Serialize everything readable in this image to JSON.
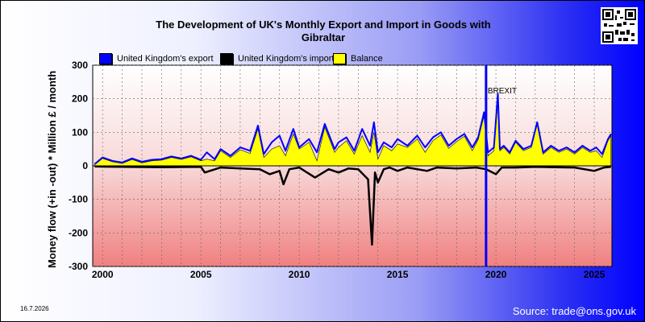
{
  "title_line1": "The Development of UK's Monthly Export and Import in Goods with",
  "title_line2": "Gibraltar",
  "date_stamp": "16.7.2026",
  "source": "Source: trade@ons.gov.uk",
  "colors": {
    "export": "#0000ff",
    "import": "#000000",
    "balance": "#ffff00",
    "brexit_line": "#0000ff"
  },
  "chart_data": {
    "type": "line",
    "title": "The Development of UK's Monthly Export and Import in Goods with Gibraltar",
    "ylabel": "Money flow (+in -out) * Million £ / month",
    "xlabel": "",
    "ylim": [
      -300,
      300
    ],
    "xlim": [
      1999.5,
      2025.9
    ],
    "y_ticks": [
      "300",
      "200",
      "100",
      "0",
      "-100",
      "-200",
      "-300"
    ],
    "x_ticks": [
      "2000",
      "2005",
      "2010",
      "2015",
      "2020",
      "2025"
    ],
    "grid": true,
    "legend_position": "top-left",
    "annotation": {
      "text": "BREXIT",
      "x": 2019.5
    },
    "series": [
      {
        "name": "United Kingdom's export",
        "x": [
          1999.6,
          2000.0,
          2000.5,
          2001.0,
          2001.5,
          2002.0,
          2002.5,
          2003.0,
          2003.5,
          2004.0,
          2004.5,
          2005.0,
          2005.3,
          2005.7,
          2006.0,
          2006.5,
          2007.0,
          2007.5,
          2007.9,
          2008.2,
          2008.6,
          2009.0,
          2009.3,
          2009.7,
          2010.0,
          2010.5,
          2010.9,
          2011.3,
          2011.8,
          2012.0,
          2012.4,
          2012.8,
          2013.2,
          2013.6,
          2013.8,
          2014.0,
          2014.3,
          2014.7,
          2015.0,
          2015.5,
          2016.0,
          2016.4,
          2016.8,
          2017.2,
          2017.6,
          2018.0,
          2018.4,
          2018.8,
          2019.1,
          2019.4,
          2019.6,
          2019.9,
          2020.1,
          2020.2,
          2020.4,
          2020.7,
          2021.0,
          2021.4,
          2021.8,
          2022.1,
          2022.4,
          2022.8,
          2023.2,
          2023.6,
          2024.0,
          2024.4,
          2024.8,
          2025.1,
          2025.4,
          2025.7,
          2025.85
        ],
        "values": [
          5,
          25,
          15,
          10,
          22,
          12,
          18,
          20,
          28,
          22,
          30,
          18,
          40,
          20,
          50,
          30,
          55,
          45,
          120,
          35,
          70,
          90,
          45,
          110,
          55,
          80,
          40,
          125,
          50,
          70,
          85,
          45,
          110,
          60,
          130,
          40,
          70,
          55,
          80,
          60,
          90,
          55,
          85,
          100,
          60,
          80,
          95,
          55,
          85,
          160,
          40,
          55,
          215,
          50,
          60,
          40,
          75,
          50,
          60,
          130,
          40,
          60,
          45,
          55,
          40,
          60,
          45,
          55,
          35,
          80,
          95
        ]
      },
      {
        "name": "United Kingdom's import",
        "x": [
          1999.6,
          2001.0,
          2003.0,
          2005.0,
          2005.2,
          2006.0,
          2007.0,
          2008.0,
          2008.5,
          2009.0,
          2009.2,
          2009.5,
          2010.0,
          2010.8,
          2011.5,
          2012.0,
          2012.5,
          2013.0,
          2013.5,
          2013.7,
          2013.85,
          2014.0,
          2014.3,
          2014.6,
          2015.0,
          2015.5,
          2016.0,
          2016.5,
          2017.0,
          2018.0,
          2019.0,
          2019.5,
          2020.0,
          2020.3,
          2021.0,
          2022.0,
          2023.0,
          2024.0,
          2025.0,
          2025.5,
          2025.85
        ],
        "values": [
          -2,
          -3,
          -4,
          -3,
          -20,
          -5,
          -8,
          -10,
          -25,
          -15,
          -55,
          -10,
          -5,
          -35,
          -10,
          -20,
          -8,
          -10,
          -40,
          -235,
          -20,
          -50,
          -10,
          -5,
          -15,
          -5,
          -10,
          -15,
          -5,
          -8,
          -5,
          -10,
          -25,
          -5,
          -5,
          -3,
          -4,
          -5,
          -15,
          -5,
          -3
        ]
      },
      {
        "name": "Balance",
        "x": [
          1999.6,
          2000.0,
          2000.5,
          2001.0,
          2001.5,
          2002.0,
          2002.5,
          2003.0,
          2003.5,
          2004.0,
          2004.5,
          2005.0,
          2005.3,
          2005.7,
          2006.0,
          2006.5,
          2007.0,
          2007.5,
          2007.9,
          2008.2,
          2008.6,
          2009.0,
          2009.3,
          2009.7,
          2010.0,
          2010.5,
          2010.9,
          2011.3,
          2011.8,
          2012.0,
          2012.4,
          2012.8,
          2013.2,
          2013.6,
          2013.8,
          2014.0,
          2014.3,
          2014.7,
          2015.0,
          2015.5,
          2016.0,
          2016.4,
          2016.8,
          2017.2,
          2017.6,
          2018.0,
          2018.4,
          2018.8,
          2019.1,
          2019.4,
          2019.6,
          2019.9,
          2020.1,
          2020.2,
          2020.4,
          2020.7,
          2021.0,
          2021.4,
          2021.8,
          2022.1,
          2022.4,
          2022.8,
          2023.2,
          2023.6,
          2024.0,
          2024.4,
          2024.8,
          2025.1,
          2025.4,
          2025.7,
          2025.85
        ],
        "values": [
          3,
          22,
          12,
          7,
          19,
          9,
          15,
          17,
          25,
          19,
          27,
          15,
          20,
          15,
          45,
          25,
          48,
          37,
          110,
          25,
          50,
          60,
          30,
          95,
          50,
          70,
          15,
          115,
          40,
          55,
          75,
          35,
          90,
          40,
          100,
          20,
          60,
          45,
          65,
          55,
          80,
          40,
          75,
          92,
          52,
          72,
          88,
          45,
          78,
          150,
          30,
          45,
          190,
          45,
          55,
          35,
          70,
          45,
          55,
          125,
          35,
          55,
          40,
          50,
          35,
          55,
          40,
          45,
          25,
          75,
          90
        ]
      }
    ]
  }
}
